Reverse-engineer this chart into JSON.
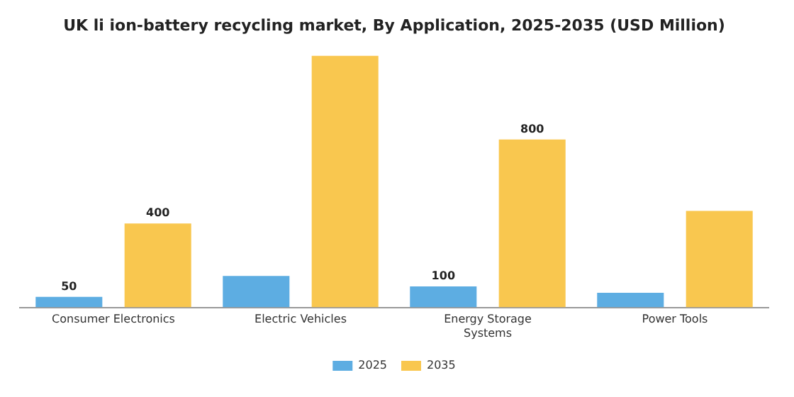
{
  "chart_data": {
    "type": "bar",
    "title": "UK li ion-battery recycling market, By Application, 2025-2035 (USD Million)",
    "categories": [
      "Consumer Electronics",
      "Electric Vehicles",
      "Energy Storage Systems",
      "Power Tools"
    ],
    "series": [
      {
        "name": "2025",
        "color": "#5dade2",
        "values": [
          50,
          150,
          100,
          70
        ],
        "value_labels": [
          "50",
          null,
          "100",
          null
        ]
      },
      {
        "name": "2035",
        "color": "#f9c74f",
        "values": [
          400,
          1200,
          800,
          460
        ],
        "value_labels": [
          "400",
          null,
          "800",
          null
        ]
      }
    ],
    "legend": "bottom",
    "grid": false
  }
}
